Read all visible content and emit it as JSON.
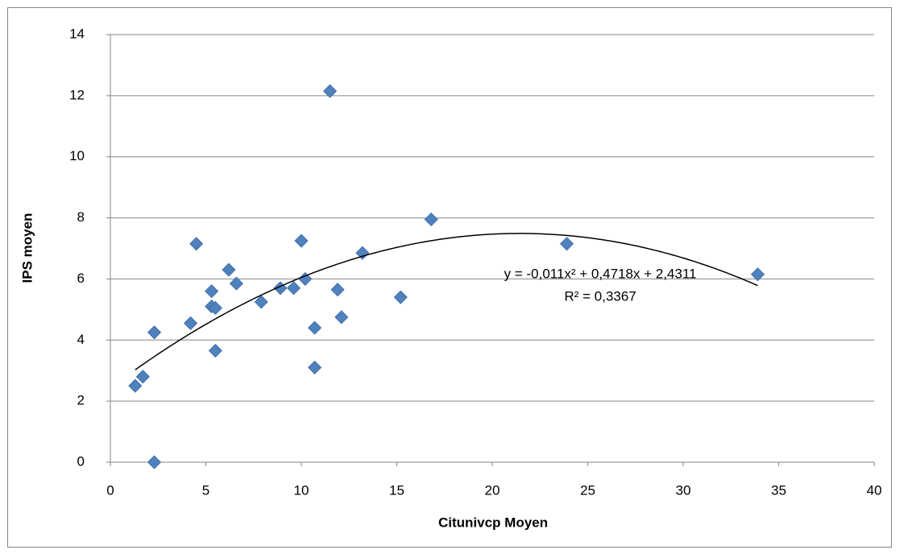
{
  "chart_data": {
    "type": "scatter",
    "x_label": "Citunivcp Moyen",
    "y_label": "IPS moyen",
    "x": [
      1.3,
      1.7,
      2.3,
      2.3,
      4.2,
      4.5,
      5.3,
      5.3,
      5.5,
      5.5,
      6.2,
      6.6,
      7.9,
      8.9,
      9.6,
      10.0,
      10.2,
      10.7,
      10.7,
      11.5,
      11.9,
      12.1,
      13.2,
      15.2,
      16.8,
      23.9,
      33.9
    ],
    "values": [
      2.5,
      2.8,
      0,
      4.25,
      4.55,
      7.15,
      5.6,
      5.1,
      5.05,
      3.65,
      6.3,
      5.85,
      5.25,
      5.7,
      5.7,
      7.25,
      6.0,
      4.4,
      3.1,
      12.15,
      5.65,
      4.75,
      6.85,
      5.4,
      7.95,
      7.15,
      6.15
    ],
    "color": "#4f81bd",
    "xlim": [
      0,
      40
    ],
    "xticks": [
      0,
      5,
      10,
      15,
      20,
      25,
      30,
      35,
      40
    ],
    "ylim": [
      0,
      14
    ],
    "yticks": [
      0,
      2,
      4,
      6,
      8,
      10,
      12,
      14
    ],
    "grid": true,
    "trendline": {
      "type": "polynomial",
      "coefficients": [
        -0.011,
        0.4718,
        2.4311
      ],
      "equation": "y = -0,011x² + 0,4718x + 2,4311",
      "r2_label": "R² = 0,3367",
      "color": "#000000"
    }
  }
}
